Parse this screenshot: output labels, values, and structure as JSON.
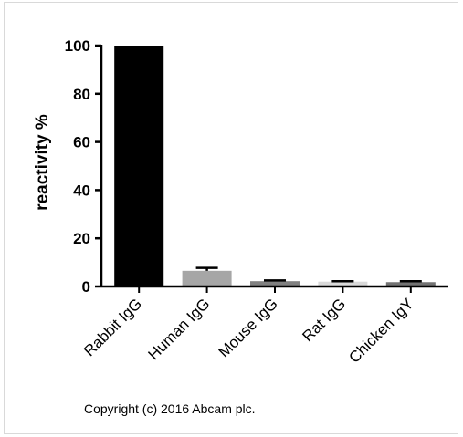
{
  "chart_data": {
    "type": "bar",
    "categories": [
      "Rabbit IgG",
      "Human IgG",
      "Mouse IgG",
      "Rat IgG",
      "Chicken IgY"
    ],
    "values": [
      100,
      6.5,
      2.2,
      2.0,
      1.8
    ],
    "errors": [
      0,
      1.2,
      0.3,
      0.2,
      0.4
    ],
    "bar_colors": [
      "#000000",
      "#a6a6a6",
      "#808080",
      "#d9d9d9",
      "#737373"
    ],
    "ylabel": "reactivity %",
    "xlabel": "",
    "ylim": [
      0,
      100
    ],
    "yticks": [
      0,
      20,
      40,
      60,
      80,
      100
    ],
    "grid": false,
    "legend": "none"
  },
  "footer": {
    "copyright": "Copyright (c) 2016 Abcam plc."
  }
}
